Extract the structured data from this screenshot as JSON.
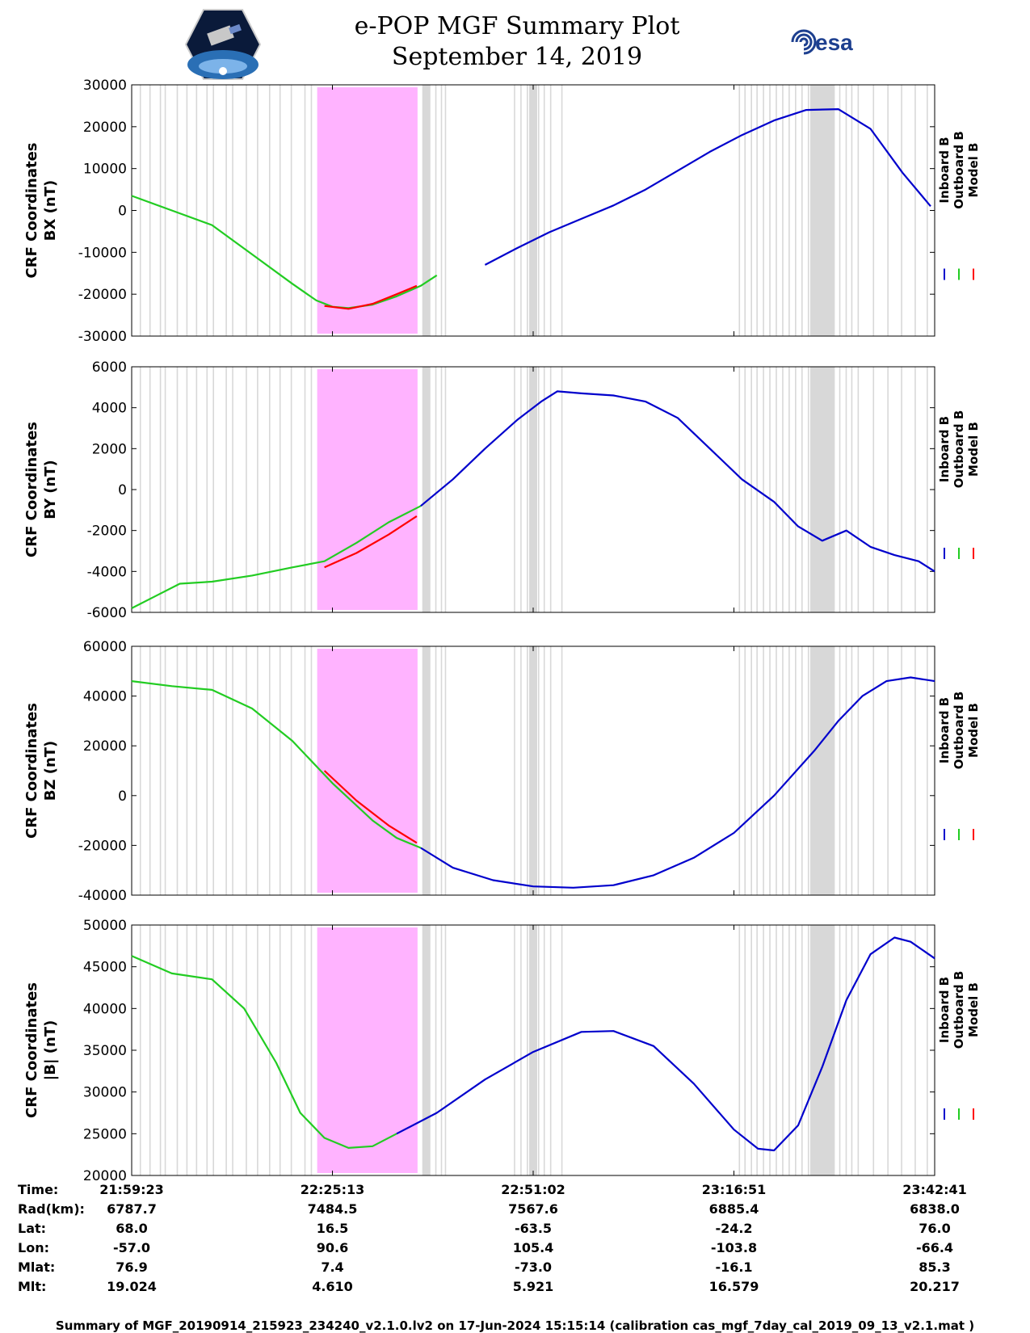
{
  "header": {
    "title": "e-POP MGF Summary Plot",
    "date": "September 14, 2019",
    "logo_left": "CASSIOPE",
    "logo_right": "esa"
  },
  "colors": {
    "inboard": "#0000cc",
    "outboard": "#22cc22",
    "model": "#ff0000",
    "shade_magenta": "#ffb3ff",
    "shade_gray": "#d8d8d8"
  },
  "chart_data": [
    {
      "type": "line",
      "ylabel_line1": "CRF Coordinates",
      "ylabel_line2": "BX (nT)",
      "ylim": [
        -30000,
        30000
      ],
      "yticks": [
        -30000,
        -20000,
        -10000,
        0,
        10000,
        20000,
        30000
      ],
      "legend": [
        "Inboard B",
        "Outboard B",
        "Model B"
      ],
      "series": [
        {
          "name": "Inboard B",
          "x": [
            44,
            48,
            52,
            56,
            60,
            64,
            68,
            72,
            76,
            80,
            84,
            88,
            92,
            96,
            99.5
          ],
          "y": [
            -13000,
            -9000,
            -5200,
            -2000,
            1200,
            5000,
            9500,
            14000,
            18000,
            21500,
            24000,
            24200,
            19500,
            9000,
            1000
          ]
        },
        {
          "name": "Outboard B",
          "x": [
            0,
            5,
            10,
            15,
            20,
            23,
            25,
            27,
            30,
            33,
            36,
            38
          ],
          "y": [
            3500,
            0,
            -3500,
            -10500,
            -17500,
            -21500,
            -23000,
            -23300,
            -22500,
            -20500,
            -18000,
            -15500
          ]
        },
        {
          "name": "Model B",
          "x": [
            24,
            27,
            30,
            33,
            35.5
          ],
          "y": [
            -22800,
            -23500,
            -22300,
            -20000,
            -18000
          ]
        }
      ]
    },
    {
      "type": "line",
      "ylabel_line1": "CRF Coordinates",
      "ylabel_line2": "BY (nT)",
      "ylim": [
        -6000,
        6000
      ],
      "yticks": [
        -6000,
        -4000,
        -2000,
        0,
        2000,
        4000,
        6000
      ],
      "legend": [
        "Inboard B",
        "Outboard B",
        "Model B"
      ],
      "series": [
        {
          "name": "Inboard B",
          "x": [
            36,
            40,
            44,
            48,
            51,
            53,
            56,
            60,
            64,
            68,
            72,
            76,
            80,
            83,
            86,
            89,
            92,
            95,
            98,
            100
          ],
          "y": [
            -800,
            500,
            2000,
            3400,
            4300,
            4800,
            4700,
            4600,
            4300,
            3500,
            2000,
            500,
            -600,
            -1800,
            -2500,
            -2000,
            -2800,
            -3200,
            -3500,
            -4000
          ]
        },
        {
          "name": "Outboard B",
          "x": [
            0,
            3,
            6,
            10,
            15,
            20,
            24,
            28,
            32,
            36
          ],
          "y": [
            -5800,
            -5200,
            -4600,
            -4500,
            -4200,
            -3800,
            -3500,
            -2600,
            -1600,
            -800
          ]
        },
        {
          "name": "Model B",
          "x": [
            24,
            28,
            32,
            35.5
          ],
          "y": [
            -3800,
            -3100,
            -2200,
            -1300
          ]
        }
      ]
    },
    {
      "type": "line",
      "ylabel_line1": "CRF Coordinates",
      "ylabel_line2": "BZ (nT)",
      "ylim": [
        -40000,
        60000
      ],
      "yticks": [
        -40000,
        -20000,
        0,
        20000,
        40000,
        60000
      ],
      "legend": [
        "Inboard B",
        "Outboard B",
        "Model B"
      ],
      "series": [
        {
          "name": "Inboard B",
          "x": [
            36,
            40,
            45,
            50,
            55,
            60,
            65,
            70,
            75,
            80,
            85,
            88,
            91,
            94,
            97,
            100
          ],
          "y": [
            -21000,
            -29000,
            -34000,
            -36500,
            -37000,
            -36000,
            -32000,
            -25000,
            -15000,
            0,
            18000,
            30000,
            40000,
            46000,
            47500,
            46000
          ]
        },
        {
          "name": "Outboard B",
          "x": [
            0,
            5,
            10,
            15,
            20,
            25,
            30,
            33,
            36
          ],
          "y": [
            46000,
            44000,
            42500,
            35000,
            22000,
            5000,
            -10000,
            -17000,
            -21000
          ]
        },
        {
          "name": "Model B",
          "x": [
            24,
            28,
            32,
            35.5
          ],
          "y": [
            10000,
            -2000,
            -12000,
            -19000
          ]
        }
      ]
    },
    {
      "type": "line",
      "ylabel_line1": "CRF Coordinates",
      "ylabel_line2": "|B| (nT)",
      "ylim": [
        20000,
        50000
      ],
      "yticks": [
        20000,
        25000,
        30000,
        35000,
        40000,
        45000,
        50000
      ],
      "legend": [
        "Inboard B",
        "Outboard B",
        "Model B"
      ],
      "series": [
        {
          "name": "Inboard B",
          "x": [
            33,
            38,
            44,
            50,
            56,
            60,
            65,
            70,
            75,
            78,
            80,
            83,
            86,
            89,
            92,
            95,
            97,
            100
          ],
          "y": [
            25000,
            27500,
            31500,
            34800,
            37200,
            37300,
            35500,
            31000,
            25500,
            23200,
            23000,
            26000,
            33000,
            41000,
            46500,
            48500,
            48000,
            46000
          ]
        },
        {
          "name": "Outboard B",
          "x": [
            0,
            5,
            10,
            14,
            18,
            21,
            24,
            27,
            30,
            33
          ],
          "y": [
            46300,
            44200,
            43500,
            40000,
            33500,
            27500,
            24500,
            23300,
            23500,
            25000
          ]
        }
      ]
    }
  ],
  "time_axis": {
    "row_labels": [
      "Time:",
      "Rad(km):",
      "Lat:",
      "Lon:",
      "Mlat:",
      "Mlt:"
    ],
    "columns": [
      {
        "x": 0,
        "values": [
          "21:59:23",
          "6787.7",
          "68.0",
          "-57.0",
          "76.9",
          "19.024"
        ]
      },
      {
        "x": 25,
        "values": [
          "22:25:13",
          "7484.5",
          "16.5",
          "90.6",
          "7.4",
          "4.610"
        ]
      },
      {
        "x": 50,
        "values": [
          "22:51:02",
          "7567.6",
          "-63.5",
          "105.4",
          "-73.0",
          "5.921"
        ]
      },
      {
        "x": 75,
        "values": [
          "23:16:51",
          "6885.4",
          "-24.2",
          "-103.8",
          "-16.1",
          "16.579"
        ]
      },
      {
        "x": 100,
        "values": [
          "23:42:41",
          "6838.0",
          "76.0",
          "-66.4",
          "85.3",
          "20.217"
        ]
      }
    ]
  },
  "footer": "Summary of MGF_20190914_215923_234240_v2.1.0.lv2 on 17-Jun-2024 15:15:14 (calibration cas_mgf_7day_cal_2019_09_13_v2.1.mat )"
}
